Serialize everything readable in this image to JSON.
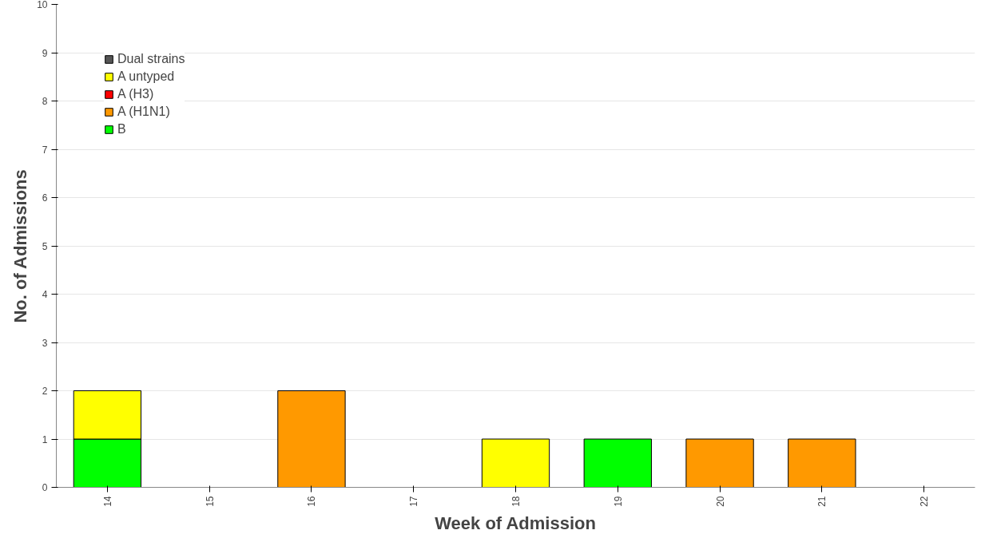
{
  "chart_data": {
    "type": "bar",
    "stacked": true,
    "xlabel": "Week of Admission",
    "ylabel": "No. of Admissions",
    "categories": [
      "14",
      "15",
      "16",
      "17",
      "18",
      "19",
      "20",
      "21",
      "22"
    ],
    "ylim": [
      0,
      10
    ],
    "yticks": [
      0,
      1,
      2,
      3,
      4,
      5,
      6,
      7,
      8,
      9,
      10
    ],
    "grid": "y",
    "legend": "top left",
    "series": [
      {
        "name": "B",
        "color": "#00ff00",
        "values": [
          1,
          0,
          0,
          0,
          0,
          1,
          0,
          0,
          0
        ]
      },
      {
        "name": "A (H1N1)",
        "color": "#ff9900",
        "values": [
          0,
          0,
          2,
          0,
          0,
          0,
          1,
          1,
          0
        ]
      },
      {
        "name": "A (H3)",
        "color": "#ff0000",
        "values": [
          0,
          0,
          0,
          0,
          0,
          0,
          0,
          0,
          0
        ]
      },
      {
        "name": "A untyped",
        "color": "#ffff00",
        "values": [
          1,
          0,
          0,
          0,
          1,
          0,
          0,
          0,
          0
        ]
      },
      {
        "name": "Dual strains",
        "color": "#555555",
        "values": [
          0,
          0,
          0,
          0,
          0,
          0,
          0,
          0,
          0
        ]
      }
    ]
  }
}
